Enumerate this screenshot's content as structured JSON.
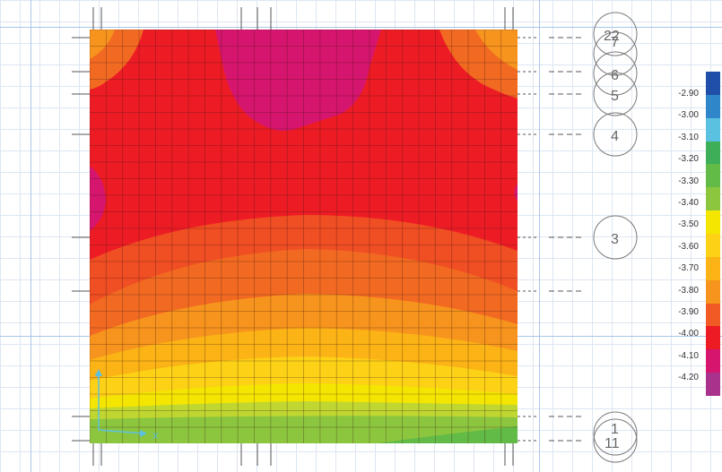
{
  "grid_bubbles": [
    {
      "label": "22"
    },
    {
      "label": "7"
    },
    {
      "label": "6"
    },
    {
      "label": "5"
    },
    {
      "label": "4"
    },
    {
      "label": "3"
    },
    {
      "label": "1"
    },
    {
      "label": "11"
    }
  ],
  "axes": {
    "x_label": "X",
    "y_label": "Y"
  },
  "legend": {
    "values": [
      "-2.90",
      "-3.00",
      "-3.10",
      "-3.20",
      "-3.30",
      "-3.40",
      "-3.50",
      "-3.60",
      "-3.70",
      "-3.80",
      "-3.90",
      "-4.00",
      "-4.10",
      "-4.20"
    ],
    "colors": [
      "#1f4fa8",
      "#2f86c8",
      "#5bc1e0",
      "#3fae58",
      "#62bb46",
      "#8cc63f",
      "#f4e600",
      "#fcd116",
      "#fbb315",
      "#f7941d",
      "#f15a24",
      "#ed1c24",
      "#d6156e",
      "#a8328c"
    ]
  },
  "contour_colors": [
    "#ed1c24",
    "#f04e23",
    "#f26a21",
    "#f7941d",
    "#fbb315",
    "#fcd116",
    "#f4e600",
    "#bfd730",
    "#8cc63f",
    "#62bb46",
    "#d6156e"
  ]
}
